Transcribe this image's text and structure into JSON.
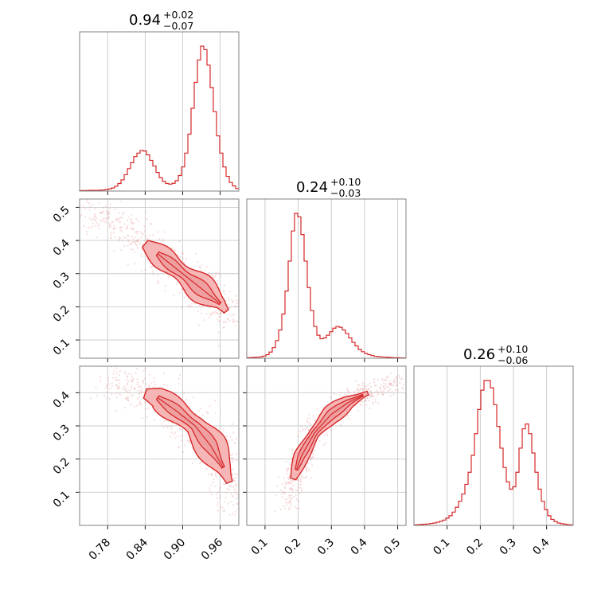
{
  "chart_data": {
    "type": "corner",
    "color": "#d62728",
    "grid": true,
    "panels": [
      {
        "id": "hist-0",
        "type": "histogram",
        "title_value": "0.94",
        "title_plus": "+0.02",
        "title_minus": "−0.07",
        "xlim": [
          0.735,
          0.99
        ],
        "x_start": 0.735,
        "bin_width": 0.0051,
        "counts": [
          0.003,
          0.003,
          0.003,
          0.004,
          0.004,
          0.004,
          0.005,
          0.006,
          0.008,
          0.012,
          0.018,
          0.028,
          0.044,
          0.065,
          0.095,
          0.13,
          0.165,
          0.2,
          0.22,
          0.235,
          0.232,
          0.21,
          0.178,
          0.145,
          0.108,
          0.078,
          0.056,
          0.044,
          0.04,
          0.045,
          0.06,
          0.09,
          0.14,
          0.22,
          0.33,
          0.48,
          0.63,
          0.76,
          0.84,
          0.82,
          0.73,
          0.6,
          0.46,
          0.32,
          0.22,
          0.14,
          0.085,
          0.05,
          0.03,
          0.015
        ]
      },
      {
        "id": "hist-1",
        "type": "histogram",
        "title_value": "0.24",
        "title_plus": "+0.10",
        "title_minus": "−0.03",
        "xlim": [
          0.045,
          0.525
        ],
        "x_start": 0.045,
        "bin_width": 0.0096,
        "counts": [
          0.003,
          0.004,
          0.005,
          0.006,
          0.008,
          0.012,
          0.02,
          0.035,
          0.06,
          0.1,
          0.16,
          0.25,
          0.38,
          0.55,
          0.72,
          0.82,
          0.8,
          0.7,
          0.55,
          0.4,
          0.27,
          0.18,
          0.13,
          0.11,
          0.115,
          0.13,
          0.15,
          0.17,
          0.18,
          0.175,
          0.16,
          0.14,
          0.115,
          0.09,
          0.07,
          0.05,
          0.037,
          0.027,
          0.02,
          0.015,
          0.011,
          0.009,
          0.007,
          0.006,
          0.005,
          0.004,
          0.003,
          0.003,
          0.002,
          0.002
        ]
      },
      {
        "id": "hist-2",
        "type": "histogram",
        "title_value": "0.26",
        "title_plus": "+0.10",
        "title_minus": "−0.06",
        "xlim": [
          0.0,
          0.48
        ],
        "x_start": 0.0,
        "bin_width": 0.0096,
        "counts": [
          0.002,
          0.003,
          0.004,
          0.005,
          0.006,
          0.008,
          0.01,
          0.013,
          0.017,
          0.022,
          0.03,
          0.04,
          0.055,
          0.075,
          0.1,
          0.13,
          0.17,
          0.22,
          0.29,
          0.38,
          0.48,
          0.56,
          0.6,
          0.6,
          0.57,
          0.5,
          0.41,
          0.32,
          0.24,
          0.18,
          0.15,
          0.16,
          0.22,
          0.32,
          0.4,
          0.42,
          0.38,
          0.3,
          0.22,
          0.15,
          0.1,
          0.065,
          0.04,
          0.025,
          0.016,
          0.01,
          0.007,
          0.005,
          0.003,
          0.002
        ]
      },
      {
        "id": "scatter-1-0",
        "type": "contour",
        "xlim": [
          0.735,
          0.99
        ],
        "ylim": [
          0.045,
          0.525
        ],
        "ridge": [
          [
            0.74,
            0.49
          ],
          [
            0.8,
            0.44
          ],
          [
            0.84,
            0.39
          ],
          [
            0.87,
            0.345
          ],
          [
            0.9,
            0.3
          ],
          [
            0.93,
            0.255
          ],
          [
            0.96,
            0.21
          ],
          [
            0.975,
            0.175
          ],
          [
            0.982,
            0.16
          ]
        ],
        "outer_halfwidth": 0.02,
        "inner_halfwidth": 0.01,
        "outer_range": [
          0.84,
          0.97
        ],
        "inner_range": [
          0.86,
          0.96
        ]
      },
      {
        "id": "scatter-2-0",
        "type": "contour",
        "xlim": [
          0.735,
          0.99
        ],
        "ylim": [
          0.0,
          0.48
        ],
        "ridge": [
          [
            0.78,
            0.425
          ],
          [
            0.82,
            0.41
          ],
          [
            0.86,
            0.385
          ],
          [
            0.89,
            0.345
          ],
          [
            0.92,
            0.3
          ],
          [
            0.945,
            0.24
          ],
          [
            0.965,
            0.175
          ],
          [
            0.975,
            0.13
          ],
          [
            0.982,
            0.09
          ],
          [
            0.985,
            0.06
          ]
        ],
        "outer_halfwidth": 0.022,
        "inner_halfwidth": 0.01,
        "outer_range": [
          0.84,
          0.975
        ],
        "inner_range": [
          0.86,
          0.965
        ]
      },
      {
        "id": "scatter-2-1",
        "type": "contour",
        "xlim": [
          0.045,
          0.525
        ],
        "ylim": [
          0.0,
          0.48
        ],
        "ridge": [
          [
            0.17,
            0.07
          ],
          [
            0.185,
            0.14
          ],
          [
            0.21,
            0.21
          ],
          [
            0.25,
            0.28
          ],
          [
            0.3,
            0.335
          ],
          [
            0.35,
            0.37
          ],
          [
            0.4,
            0.395
          ],
          [
            0.45,
            0.415
          ],
          [
            0.5,
            0.43
          ]
        ],
        "outer_halfwidth": 0.024,
        "inner_halfwidth": 0.012,
        "outer_range": [
          0.185,
          0.41
        ],
        "inner_range": [
          0.195,
          0.395
        ]
      }
    ],
    "x_ticks": {
      "col0": [
        "0.78",
        "0.84",
        "0.90",
        "0.96"
      ],
      "col1": [
        "0.1",
        "0.2",
        "0.3",
        "0.4",
        "0.5"
      ],
      "col2": [
        "0.1",
        "0.2",
        "0.3",
        "0.4"
      ]
    },
    "y_ticks": {
      "row1": [
        "0.1",
        "0.2",
        "0.3",
        "0.4",
        "0.5"
      ],
      "row2": [
        "0.1",
        "0.2",
        "0.3",
        "0.4"
      ]
    },
    "x_tick_values": {
      "col0": [
        0.78,
        0.84,
        0.9,
        0.96
      ],
      "col1": [
        0.1,
        0.2,
        0.3,
        0.4,
        0.5
      ],
      "col2": [
        0.1,
        0.2,
        0.3,
        0.4
      ]
    },
    "y_tick_values": {
      "row1": [
        0.1,
        0.2,
        0.3,
        0.4,
        0.5
      ],
      "row2": [
        0.1,
        0.2,
        0.3,
        0.4
      ]
    }
  }
}
